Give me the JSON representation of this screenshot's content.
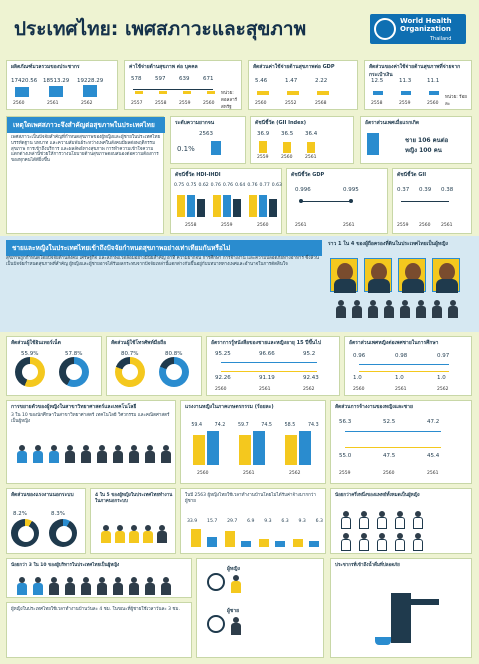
{
  "header": {
    "title": "ประเทศไทย: เพศสภาวะและสุขภาพ",
    "org_line1": "World Health",
    "org_line2": "Organization",
    "org_line3": "Thailand"
  },
  "top": {
    "pop_title": "ผลิตภัณฑ์มวลรวมของประชากร",
    "pop_values": [
      "17420.56",
      "18513.29",
      "19228.29"
    ],
    "pop_years": [
      "2560",
      "2561",
      "2562"
    ],
    "health_title": "ค่าใช้จ่ายด้านสุขภาพ ต่อ บุคคล",
    "health_values": [
      "578",
      "597",
      "639",
      "671"
    ],
    "health_years": [
      "2557",
      "2558",
      "2559",
      "2560"
    ],
    "health_note": "หน่วย: ดอลลาร์สหรัฐ",
    "ratio_title": "สัดส่วนค่าใช้จ่ายด้านสุขภาพต่อ GDP",
    "ratio_values": [
      "5.46",
      "1.47",
      "2.22"
    ],
    "ratio_years": [
      "2560",
      "2552",
      "2568"
    ],
    "oop_title": "สัดส่วนของค่าใช้จ่ายด้านสุขภาพที่จ่ายจากกระเป๋าเงิน",
    "oop_values": [
      "12.5",
      "11.3",
      "11.1"
    ],
    "oop_years": [
      "2558",
      "2559",
      "2560"
    ],
    "oop_note": "หน่วย: ร้อยละ"
  },
  "gender_section": {
    "title": "เหตุใดเพศสภาวะจึงสำคัญต่อสุขภาพในประเทศไทย",
    "body": "เพศสภาวะเป็นปัจจัยสำคัญที่กำหนดสุขภาพของผู้หญิงและผู้ชายในประเทศไทย บรรทัดฐาน บทบาท และความสัมพันธ์ระหว่างเพศในสังคมมีผลต่อพฤติกรรมสุขภาพ การเข้าถึงบริการ และผลลัพธ์ทางสุขภาพ การทำความเข้าใจความแตกต่างเหล่านี้ช่วยให้การวางนโยบายด้านสุขภาพตอบสนองต่อความต้องการของทุกคนได้ดียิ่งขึ้น"
  },
  "indices": {
    "hdi_title": "ระดับความยากจน",
    "hdi_value": "2563",
    "hdi_pct": "0.1%",
    "gii_title": "ดัชนีชี้วัด (GII Index)",
    "gii_values": [
      "36.9",
      "36.5",
      "36.4"
    ],
    "gii_years": [
      "2559",
      "2560",
      "2561"
    ],
    "life_title": "อัตราส่วนเพศเมื่อแรกเกิด",
    "life_text1": "ชาย 106 คนต่อ",
    "life_text2": "หญิง 100 คน",
    "hdi2_title": "ดัชนีชี้วัด HDI-IHDI",
    "hdi2_values": [
      "0.75",
      "0.75",
      "0.62",
      "0.76",
      "0.76",
      "0.64",
      "0.76",
      "0.77",
      "0.63"
    ],
    "hdi2_years": [
      "2558",
      "2559",
      "2560"
    ],
    "gdp_title": "ดัชนีชี้วัด GDP",
    "gdp_values": [
      "0.996",
      "0.995"
    ],
    "gdp_years": [
      "2561",
      "2561"
    ],
    "gni_title": "ดัชนีชี้วัด GII",
    "gni_values": [
      "0.37",
      "0.39",
      "0.38"
    ],
    "gni_years": [
      "2559",
      "2560",
      "2561"
    ]
  },
  "impact": {
    "title": "ชายและหญิงในประเทศไทยเข้าถึงปัจจัยกำหนดสุขภาพอย่างเท่าเทียมกันหรือไม่",
    "body": "สุขภาพถูกกำหนดโดยปัจจัยด้านสังคม เศรษฐกิจ และสภาพแวดล้อมอย่างมีนัยสำคัญ อาทิ ความยากจน การศึกษา การจ้างงาน และความปลอดภัยทางอาหาร ซึ่งล้วนเป็นปัจจัยกำหนดสุขภาพที่สำคัญ ผู้หญิงและผู้ชายอาจได้รับผลกระทบจากปัจจัยเหล่านี้แตกต่างกันขึ้นอยู่กับบทบาททางเพศและอำนาจในการตัดสินใจ",
    "quote": "ราว 1 ใน 4 ของผู้ถือครองที่ดินในประเทศไทยเป็นผู้หญิง"
  },
  "labor": {
    "title": "สัดส่วนผู้ใช้อินเทอร์เน็ต",
    "female": "55.9%",
    "male": "57.8%",
    "labor2_title": "สัดส่วนผู้ใช้โทรศัพท์มือถือ",
    "female2": "80.7%",
    "male2": "80.8%",
    "lit_title": "อัตราการรู้หนังสือของชายและหญิงอายุ 15 ปีขึ้นไป",
    "lit_values": [
      "95.25",
      "96.66",
      "95.2",
      "92.26",
      "91.19",
      "92.43"
    ],
    "lit_years": [
      "2560",
      "2561",
      "2562"
    ],
    "sec_title": "อัตราส่วนเพศหญิงต่อเพศชายในการศึกษา",
    "sec_values": [
      "0.96",
      "0.98",
      "0.97",
      "1.0",
      "1.0",
      "1.0"
    ],
    "sec_years": [
      "2560",
      "2561",
      "2562"
    ]
  },
  "education": {
    "title": "การขยายตัวของผู้หญิงในสาขาวิทยาศาสตร์และเทคโนโลยี",
    "body": "3 ใน 10 ของนักศึกษาในสาขาวิทยาศาสตร์ เทคโนโลยี วิศวกรรม และคณิตศาสตร์เป็นผู้หญิง",
    "emp_title": "แรงงานหญิงในภาคเกษตรกรรม (ร้อยละ)",
    "emp_values": [
      "59.4",
      "74.2",
      "59.7",
      "74.5",
      "58.5",
      "74.3"
    ],
    "emp_years": [
      "2560",
      "2561",
      "2562"
    ],
    "dist_title": "สัดส่วนการจ้างงานของหญิงและชาย",
    "dist_values": [
      "56.3",
      "52.5",
      "47.2",
      "55.0",
      "47.5",
      "45.4"
    ],
    "dist_years": [
      "2559",
      "2560",
      "2561"
    ]
  },
  "violence": {
    "vt_title": "สัดส่วนของแรงงานนอกระบบ",
    "vt_female": "8.2%",
    "vt_male": "8.3%",
    "v1": "4 ใน 5 ของผู้หญิงในประเทศไทยทำงานในภาคนอกระบบ",
    "v2": "ในปี 2563 ผู้หญิงไทยใช้เวลาทำงานบ้านโดยไม่ได้รับค่าจ้างมากกว่าผู้ชาย",
    "v3": "น้อยกว่าครึ่งหนึ่งของแพทย์ทั้งหมดเป็นผู้หญิง",
    "ages": [
      "33.9",
      "15.7",
      "29.7",
      "6.9",
      "9.3",
      "6.3",
      "9.3",
      "6.3"
    ]
  },
  "bottom": {
    "b1": "น้อยกว่า 3 ใน 10 ของผู้บริหารในประเทศไทยเป็นผู้หญิง",
    "b2": "ผู้หญิงในประเทศไทยใช้เวลาทำงานบ้านวันละ 4 ชม. ในขณะที่ผู้ชายใช้เวลาวันละ 3 ชม.",
    "b3": "ประชากรที่เข้าถึงน้ำดื่มที่ปลอดภัย",
    "f_label": "ผู้หญิง",
    "m_label": "ผู้ชาย"
  },
  "colors": {
    "blue": "#2a8ccf",
    "yellow": "#f4c81e",
    "navy": "#1f3a4d",
    "bg": "#eef3d2"
  }
}
